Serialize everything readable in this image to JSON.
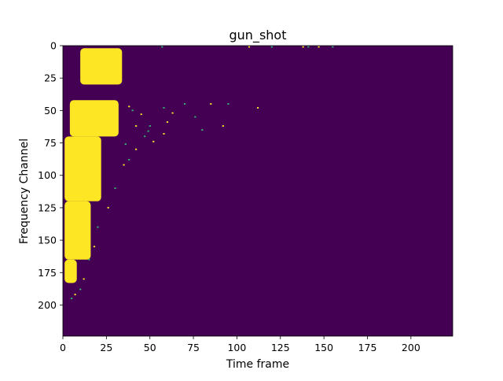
{
  "chart_data": {
    "type": "heatmap",
    "title": "gun_shot",
    "xlabel": "Time frame",
    "ylabel": "Frequency Channel",
    "xlim": [
      0,
      224
    ],
    "ylim": [
      0,
      224
    ],
    "y_inverted": true,
    "x_ticks": [
      0,
      25,
      50,
      75,
      100,
      125,
      150,
      175,
      200
    ],
    "y_ticks": [
      0,
      25,
      50,
      75,
      100,
      125,
      150,
      175,
      200
    ],
    "colors": {
      "background": "#440154",
      "active": "#fde725",
      "sparse": "#35b779"
    },
    "blobs": [
      {
        "x_start": 10,
        "x_end": 34,
        "y_start": 2,
        "y_end": 30
      },
      {
        "x_start": 4,
        "x_end": 32,
        "y_start": 42,
        "y_end": 70
      },
      {
        "x_start": 1,
        "x_end": 22,
        "y_start": 70,
        "y_end": 120
      },
      {
        "x_start": 1,
        "x_end": 16,
        "y_start": 120,
        "y_end": 165
      },
      {
        "x_start": 1,
        "x_end": 8,
        "y_start": 165,
        "y_end": 183
      }
    ],
    "scatter_points": [
      [
        57,
        1
      ],
      [
        107,
        1
      ],
      [
        120,
        1
      ],
      [
        138,
        1
      ],
      [
        141,
        1
      ],
      [
        147,
        1
      ],
      [
        155,
        1
      ],
      [
        38,
        47
      ],
      [
        40,
        50
      ],
      [
        45,
        53
      ],
      [
        58,
        48
      ],
      [
        63,
        52
      ],
      [
        70,
        45
      ],
      [
        85,
        45
      ],
      [
        95,
        45
      ],
      [
        112,
        48
      ],
      [
        76,
        55
      ],
      [
        60,
        59
      ],
      [
        50,
        62
      ],
      [
        42,
        62
      ],
      [
        49,
        66
      ],
      [
        58,
        68
      ],
      [
        80,
        65
      ],
      [
        92,
        62
      ],
      [
        47,
        70
      ],
      [
        52,
        74
      ],
      [
        36,
        76
      ],
      [
        42,
        80
      ],
      [
        38,
        88
      ],
      [
        35,
        92
      ],
      [
        30,
        110
      ],
      [
        26,
        125
      ],
      [
        20,
        140
      ],
      [
        18,
        155
      ],
      [
        15,
        165
      ],
      [
        12,
        180
      ],
      [
        10,
        188
      ],
      [
        7,
        192
      ],
      [
        5,
        195
      ]
    ]
  }
}
